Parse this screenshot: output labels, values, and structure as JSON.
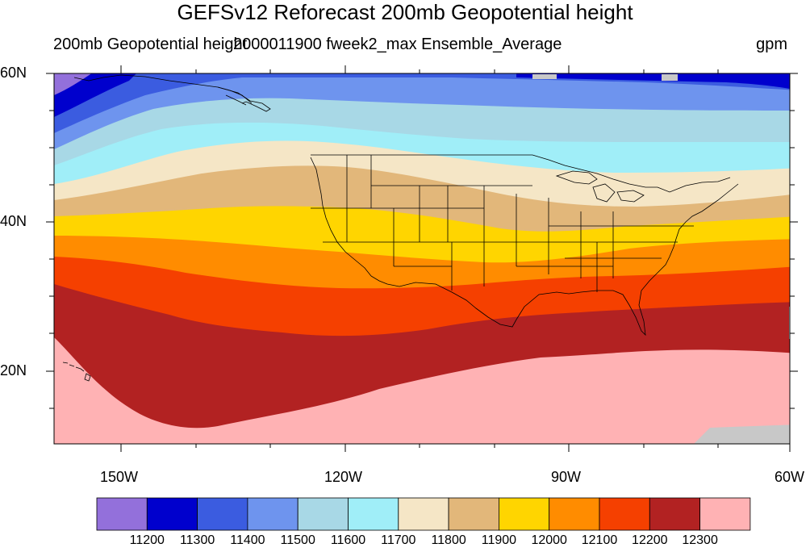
{
  "header": {
    "title": "GEFSv12 Reforecast 200mb Geopotential height",
    "left_subtitle": "200mb Geopotential height",
    "center_subtitle": "2000011900 fweek2_max Ensemble_Average",
    "units": "gpm"
  },
  "axes": {
    "lat_labels": [
      "60N",
      "40N",
      "20N"
    ],
    "lon_labels": [
      "150W",
      "120W",
      "90W",
      "60W"
    ]
  },
  "legend": {
    "colors": [
      "#9370DB",
      "#0000CD",
      "#3B5CE0",
      "#6E94EE",
      "#A8D8E6",
      "#A0EEF8",
      "#F5E6C6",
      "#E2B77A",
      "#FFD500",
      "#FF8C00",
      "#F54000",
      "#B22222",
      "#FFB2B4"
    ],
    "labels": [
      "11200",
      "11300",
      "11400",
      "11500",
      "11600",
      "11700",
      "11800",
      "11900",
      "12000",
      "12100",
      "12200",
      "12300"
    ]
  },
  "map": {
    "region": "North America and Eastern Pacific",
    "lon_range": [
      -160,
      -60
    ],
    "lat_range": [
      10,
      60
    ],
    "contour_levels": [
      11200,
      11300,
      11400,
      11500,
      11600,
      11700,
      11800,
      11900,
      12000,
      12100,
      12200,
      12300
    ]
  }
}
